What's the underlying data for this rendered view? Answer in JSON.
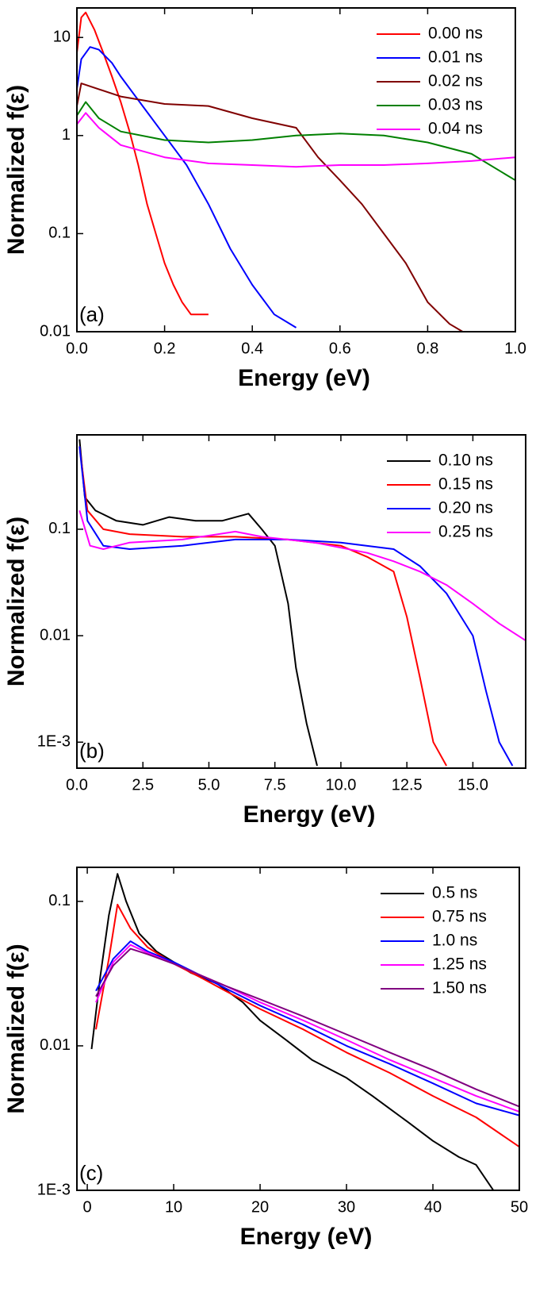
{
  "chart_data": [
    {
      "type": "line",
      "yscale": "log",
      "legend": "upper right",
      "annotation": "(a)",
      "xlabel": "Energy (eV)",
      "ylabel": "Normalized f(ε)",
      "xlim": [
        0,
        1
      ],
      "ylim": [
        0.01,
        20
      ],
      "xticks": [
        {
          "value": 0,
          "label": "0.0"
        },
        0.2,
        0.4,
        0.6,
        0.8,
        {
          "value": 1,
          "label": "1.0"
        }
      ],
      "yticks": [
        0.01,
        0.1,
        1,
        10
      ],
      "series": [
        {
          "name": "0.00 ns",
          "color": "#ff0000",
          "x": [
            0.0,
            0.01,
            0.02,
            0.04,
            0.06,
            0.08,
            0.1,
            0.12,
            0.14,
            0.16,
            0.18,
            0.2,
            0.22,
            0.24,
            0.26,
            0.28,
            0.3
          ],
          "values": [
            7,
            16,
            18,
            12,
            7,
            4,
            2.2,
            1.1,
            0.5,
            0.2,
            0.1,
            0.05,
            0.03,
            0.02,
            0.015,
            0.015,
            0.015
          ]
        },
        {
          "name": "0.01 ns",
          "color": "#0000ff",
          "x": [
            0,
            0.01,
            0.03,
            0.05,
            0.08,
            0.1,
            0.15,
            0.2,
            0.25,
            0.3,
            0.35,
            0.4,
            0.45,
            0.5
          ],
          "values": [
            3,
            6,
            8,
            7.5,
            5.5,
            4,
            2,
            1,
            0.5,
            0.2,
            0.07,
            0.03,
            0.015,
            0.011
          ]
        },
        {
          "name": "0.02 ns",
          "color": "#800000",
          "x": [
            0,
            0.01,
            0.1,
            0.2,
            0.3,
            0.4,
            0.5,
            0.55,
            0.6,
            0.65,
            0.7,
            0.75,
            0.8,
            0.85,
            0.88
          ],
          "values": [
            2,
            3.4,
            2.5,
            2.1,
            2,
            1.5,
            1.2,
            0.6,
            0.35,
            0.2,
            0.1,
            0.05,
            0.02,
            0.012,
            0.01
          ]
        },
        {
          "name": "0.03 ns",
          "color": "#008000",
          "x": [
            0,
            0.02,
            0.05,
            0.1,
            0.2,
            0.3,
            0.4,
            0.5,
            0.6,
            0.7,
            0.8,
            0.9,
            1.0
          ],
          "values": [
            1.6,
            2.2,
            1.5,
            1.1,
            0.9,
            0.85,
            0.9,
            1.0,
            1.05,
            1.0,
            0.85,
            0.65,
            0.35
          ]
        },
        {
          "name": "0.04 ns",
          "color": "#ff00ff",
          "x": [
            0,
            0.02,
            0.05,
            0.1,
            0.2,
            0.3,
            0.4,
            0.5,
            0.6,
            0.7,
            0.8,
            0.9,
            1.0
          ],
          "values": [
            1.3,
            1.7,
            1.2,
            0.8,
            0.6,
            0.52,
            0.5,
            0.48,
            0.5,
            0.5,
            0.52,
            0.55,
            0.6
          ]
        }
      ]
    },
    {
      "type": "line",
      "yscale": "log",
      "legend": "upper right",
      "annotation": "(b)",
      "xlabel": "Energy (eV)",
      "ylabel": "Normalized f(ε)",
      "xlim": [
        0,
        17
      ],
      "ylim": [
        0.00057,
        0.77
      ],
      "xticks": [
        {
          "value": 0,
          "label": "0.0"
        },
        2.5,
        {
          "value": 5,
          "label": "5.0"
        },
        7.5,
        {
          "value": 10,
          "label": "10.0"
        },
        12.5,
        {
          "value": 15,
          "label": "15.0"
        }
      ],
      "yticks": [
        {
          "value": 0.001,
          "label": "1E-3"
        },
        0.01,
        0.1
      ],
      "series": [
        {
          "name": "0.10 ns",
          "color": "#000000",
          "x": [
            0.1,
            0.3,
            0.7,
            1.5,
            2.5,
            3.5,
            4.5,
            5.5,
            6.5,
            7.0,
            7.5,
            8.0,
            8.3,
            8.7,
            9.1
          ],
          "values": [
            0.7,
            0.2,
            0.15,
            0.12,
            0.11,
            0.13,
            0.12,
            0.12,
            0.14,
            0.1,
            0.07,
            0.02,
            0.005,
            0.0015,
            0.0006
          ]
        },
        {
          "name": "0.15 ns",
          "color": "#ff0000",
          "x": [
            0.1,
            0.4,
            1,
            2,
            4,
            6,
            8,
            10,
            11,
            12,
            12.5,
            13,
            13.5,
            14
          ],
          "values": [
            0.6,
            0.15,
            0.1,
            0.09,
            0.085,
            0.085,
            0.08,
            0.07,
            0.055,
            0.04,
            0.015,
            0.004,
            0.001,
            0.0006
          ]
        },
        {
          "name": "0.20 ns",
          "color": "#0000ff",
          "x": [
            0.1,
            0.4,
            1,
            2,
            4,
            6,
            8,
            10,
            12,
            13,
            14,
            15,
            15.5,
            16,
            16.5
          ],
          "values": [
            0.6,
            0.12,
            0.07,
            0.065,
            0.07,
            0.08,
            0.08,
            0.075,
            0.065,
            0.045,
            0.025,
            0.01,
            0.003,
            0.001,
            0.0006
          ]
        },
        {
          "name": "0.25 ns",
          "color": "#ff00ff",
          "x": [
            0.1,
            0.5,
            1,
            2,
            4,
            6,
            7,
            9,
            11,
            12,
            13,
            14,
            15,
            16,
            17
          ],
          "values": [
            0.15,
            0.07,
            0.065,
            0.075,
            0.08,
            0.095,
            0.085,
            0.075,
            0.06,
            0.05,
            0.04,
            0.03,
            0.02,
            0.013,
            0.009
          ]
        }
      ]
    },
    {
      "type": "line",
      "yscale": "log",
      "legend": "upper right",
      "annotation": "(c)",
      "xlabel": "Energy (eV)",
      "ylabel": "Normalized f(ε)",
      "xlim": [
        -1.2,
        50
      ],
      "ylim": [
        0.001,
        0.172
      ],
      "xticks": [
        0,
        10,
        20,
        30,
        40,
        50
      ],
      "yticks": [
        {
          "value": 0.001,
          "label": "1E-3"
        },
        0.01,
        0.1
      ],
      "series": [
        {
          "name": "0.5 ns",
          "color": "#000000",
          "x": [
            0.5,
            1.5,
            2.5,
            3.5,
            4.5,
            6,
            8,
            10,
            12,
            15,
            18,
            20,
            23,
            26,
            30,
            33,
            37,
            40,
            43,
            45,
            47
          ],
          "values": [
            0.0095,
            0.03,
            0.08,
            0.155,
            0.1,
            0.06,
            0.045,
            0.038,
            0.032,
            0.027,
            0.02,
            0.015,
            0.011,
            0.008,
            0.006,
            0.0045,
            0.003,
            0.0022,
            0.0017,
            0.0015,
            0.001
          ]
        },
        {
          "name": "0.75 ns",
          "color": "#ff0000",
          "x": [
            1,
            2.5,
            3.5,
            5,
            7,
            10,
            13,
            16,
            20,
            25,
            30,
            35,
            40,
            45,
            50
          ],
          "values": [
            0.013,
            0.04,
            0.095,
            0.065,
            0.048,
            0.037,
            0.03,
            0.024,
            0.018,
            0.013,
            0.009,
            0.0065,
            0.0045,
            0.0032,
            0.002
          ]
        },
        {
          "name": "1.0 ns",
          "color": "#0000ff",
          "x": [
            1,
            3,
            5,
            7,
            10,
            13,
            16,
            20,
            25,
            30,
            35,
            40,
            45,
            50
          ],
          "values": [
            0.024,
            0.04,
            0.053,
            0.045,
            0.038,
            0.031,
            0.025,
            0.019,
            0.014,
            0.01,
            0.0075,
            0.0055,
            0.004,
            0.0033
          ]
        },
        {
          "name": "1.25 ns",
          "color": "#ff00ff",
          "x": [
            1,
            3,
            5,
            7,
            10,
            13,
            16,
            20,
            25,
            30,
            35,
            40,
            45,
            50
          ],
          "values": [
            0.02,
            0.038,
            0.05,
            0.044,
            0.037,
            0.031,
            0.026,
            0.02,
            0.015,
            0.011,
            0.008,
            0.006,
            0.0045,
            0.0035
          ]
        },
        {
          "name": "1.50 ns",
          "color": "#800080",
          "x": [
            1,
            3,
            5,
            7,
            10,
            13,
            16,
            20,
            25,
            30,
            35,
            40,
            45,
            50
          ],
          "values": [
            0.022,
            0.036,
            0.047,
            0.043,
            0.037,
            0.031,
            0.026,
            0.021,
            0.016,
            0.012,
            0.009,
            0.0068,
            0.005,
            0.0038
          ]
        }
      ]
    }
  ]
}
